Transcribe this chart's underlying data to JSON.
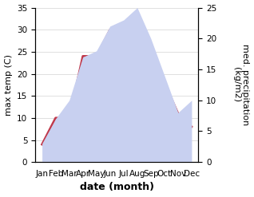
{
  "months": [
    "Jan",
    "Feb",
    "Mar",
    "Apr",
    "May",
    "Jun",
    "Jul",
    "Aug",
    "Sep",
    "Oct",
    "Nov",
    "Dec"
  ],
  "x": [
    0.5,
    1.5,
    2.5,
    3.5,
    4.5,
    5.5,
    6.5,
    7.5,
    8.5,
    9.5,
    10.5,
    11.5
  ],
  "temperature": [
    4,
    10,
    10,
    24,
    24,
    30,
    31,
    32,
    25,
    18,
    11,
    8
  ],
  "precipitation": [
    3,
    7,
    10,
    17,
    18,
    22,
    23,
    25,
    20,
    14,
    8,
    10
  ],
  "temp_color": "#c0394b",
  "precip_fill_color": "#c8d0f0",
  "ylabel_left": "max temp (C)",
  "ylabel_right": "med. precipitation\n(kg/m2)",
  "xlabel": "date (month)",
  "ylim_left": [
    0,
    35
  ],
  "ylim_right": [
    0,
    25
  ],
  "yticks_left": [
    0,
    5,
    10,
    15,
    20,
    25,
    30,
    35
  ],
  "yticks_right": [
    0,
    5,
    10,
    15,
    20,
    25
  ],
  "xlim": [
    0,
    12
  ],
  "label_fontsize": 8,
  "tick_fontsize": 7.5,
  "xlabel_fontsize": 9,
  "linewidth": 2.0
}
